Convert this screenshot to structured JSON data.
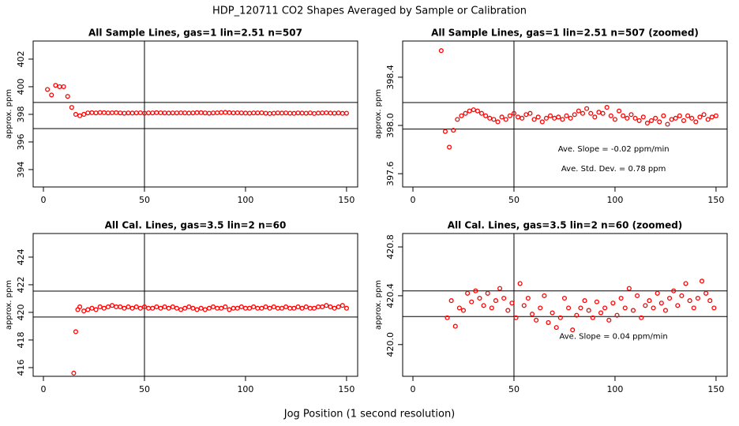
{
  "title": "HDP_120711  CO2 Shapes Averaged by Sample or Calibration",
  "xlabel": "Jog Position (1 second resolution)",
  "chart_data": [
    {
      "type": "scatter",
      "title": "All Sample Lines, gas=1 lin=2.51 n=507",
      "ylabel": "approx. ppm",
      "color": "#ff0000",
      "xlim": [
        -5.08,
        155.5
      ],
      "ylim": [
        392.74,
        403.31
      ],
      "xticks": [
        0,
        50,
        100,
        150
      ],
      "yticks": [
        394,
        396,
        398,
        400,
        402
      ],
      "hlines": [
        396.97,
        398.86
      ],
      "vlines": [
        50
      ],
      "annotations": [],
      "x": [
        2,
        4,
        6,
        8,
        10,
        12,
        14,
        16,
        18,
        20,
        22,
        24,
        26,
        28,
        30,
        32,
        34,
        36,
        38,
        40,
        42,
        44,
        46,
        48,
        50,
        52,
        54,
        56,
        58,
        60,
        62,
        64,
        66,
        68,
        70,
        72,
        74,
        76,
        78,
        80,
        82,
        84,
        86,
        88,
        90,
        92,
        94,
        96,
        98,
        100,
        102,
        104,
        106,
        108,
        110,
        112,
        114,
        116,
        118,
        120,
        122,
        124,
        126,
        128,
        130,
        132,
        134,
        136,
        138,
        140,
        142,
        144,
        146,
        148,
        150
      ],
      "values": [
        399.8,
        399.4,
        400.1,
        400.0,
        400.0,
        399.3,
        398.5,
        398.0,
        397.9,
        398.0,
        398.1,
        398.12,
        398.1,
        398.13,
        398.12,
        398.1,
        398.11,
        398.12,
        398.1,
        398.08,
        398.1,
        398.09,
        398.1,
        398.11,
        398.08,
        398.1,
        398.1,
        398.12,
        398.11,
        398.1,
        398.09,
        398.1,
        398.1,
        398.11,
        398.1,
        398.09,
        398.1,
        398.12,
        398.12,
        398.1,
        398.08,
        398.1,
        398.11,
        398.13,
        398.14,
        398.12,
        398.1,
        398.11,
        398.1,
        398.09,
        398.08,
        398.1,
        398.1,
        398.11,
        398.08,
        398.06,
        398.08,
        398.1,
        398.09,
        398.1,
        398.08,
        398.07,
        398.1,
        398.09,
        398.08,
        398.1,
        398.06,
        398.09,
        398.1,
        398.11,
        398.09,
        398.08,
        398.1,
        398.07,
        398.08
      ]
    },
    {
      "type": "scatter",
      "title": "All Sample Lines, gas=1 lin=2.51 n=507 (zoomed)",
      "ylabel": "approx. ppm",
      "color": "#ff0000",
      "xlim": [
        -5.08,
        155.5
      ],
      "ylim": [
        397.49,
        398.7
      ],
      "xticks": [
        0,
        50,
        100,
        150
      ],
      "yticks": [
        397.6,
        {
          "value": 398,
          "label": "398.0"
        },
        398.4
      ],
      "hlines": [
        397.97,
        398.19
      ],
      "vlines": [
        50
      ],
      "annotations": [
        "Ave. Slope =  -0.02  ppm/min",
        "Ave. Std. Dev. =  0.78  ppm"
      ],
      "x": [
        14,
        16,
        18,
        20,
        22,
        24,
        26,
        28,
        30,
        32,
        34,
        36,
        38,
        40,
        42,
        44,
        46,
        48,
        50,
        52,
        54,
        56,
        58,
        60,
        62,
        64,
        66,
        68,
        70,
        72,
        74,
        76,
        78,
        80,
        82,
        84,
        86,
        88,
        90,
        92,
        94,
        96,
        98,
        100,
        102,
        104,
        106,
        108,
        110,
        112,
        114,
        116,
        118,
        120,
        122,
        124,
        126,
        128,
        130,
        132,
        134,
        136,
        138,
        140,
        142,
        144,
        146,
        148,
        150
      ],
      "values": [
        398.62,
        397.95,
        397.82,
        397.96,
        398.05,
        398.08,
        398.1,
        398.12,
        398.13,
        398.12,
        398.1,
        398.08,
        398.06,
        398.05,
        398.03,
        398.07,
        398.05,
        398.08,
        398.1,
        398.07,
        398.06,
        398.09,
        398.1,
        398.05,
        398.07,
        398.03,
        398.06,
        398.08,
        398.06,
        398.07,
        398.05,
        398.08,
        398.06,
        398.09,
        398.12,
        398.1,
        398.14,
        398.1,
        398.07,
        398.11,
        398.1,
        398.15,
        398.08,
        398.05,
        398.12,
        398.08,
        398.06,
        398.09,
        398.06,
        398.04,
        398.07,
        398.02,
        398.04,
        398.06,
        398.03,
        398.08,
        398.01,
        398.05,
        398.06,
        398.08,
        398.04,
        398.08,
        398.06,
        398.03,
        398.07,
        398.09,
        398.05,
        398.07,
        398.08
      ]
    },
    {
      "type": "scatter",
      "title": "All Cal. Lines, gas=3.5 lin=2 n=60",
      "ylabel": "approx. ppm",
      "color": "#ff0000",
      "xlim": [
        -5.08,
        155.5
      ],
      "ylim": [
        415.37,
        425.71
      ],
      "xticks": [
        0,
        50,
        100,
        150
      ],
      "yticks": [
        416,
        418,
        420,
        422,
        424
      ],
      "hlines": [
        419.66,
        421.54
      ],
      "vlines": [
        50
      ],
      "annotations": [],
      "x": [
        15,
        16,
        17,
        18,
        20,
        22,
        24,
        26,
        28,
        30,
        32,
        34,
        36,
        38,
        40,
        42,
        44,
        46,
        48,
        50,
        52,
        54,
        56,
        58,
        60,
        62,
        64,
        66,
        68,
        70,
        72,
        74,
        76,
        78,
        80,
        82,
        84,
        86,
        88,
        90,
        92,
        94,
        96,
        98,
        100,
        102,
        104,
        106,
        108,
        110,
        112,
        114,
        116,
        118,
        120,
        122,
        124,
        126,
        128,
        130,
        132,
        134,
        136,
        138,
        140,
        142,
        144,
        146,
        148,
        150
      ],
      "values": [
        415.6,
        418.6,
        420.2,
        420.4,
        420.1,
        420.2,
        420.3,
        420.2,
        420.4,
        420.3,
        420.4,
        420.5,
        420.4,
        420.4,
        420.3,
        420.4,
        420.3,
        420.4,
        420.3,
        420.4,
        420.3,
        420.3,
        420.4,
        420.3,
        420.4,
        420.3,
        420.4,
        420.3,
        420.2,
        420.3,
        420.4,
        420.3,
        420.2,
        420.3,
        420.2,
        420.3,
        420.4,
        420.3,
        420.3,
        420.4,
        420.2,
        420.3,
        420.3,
        420.4,
        420.3,
        420.3,
        420.4,
        420.3,
        420.3,
        420.4,
        420.3,
        420.4,
        420.3,
        420.3,
        420.4,
        420.3,
        420.3,
        420.4,
        420.3,
        420.4,
        420.3,
        420.3,
        420.4,
        420.4,
        420.5,
        420.4,
        420.3,
        420.4,
        420.5,
        420.3
      ]
    },
    {
      "type": "scatter",
      "title": "All Cal. Lines, gas=3.5 lin=2 n=60 (zoomed)",
      "ylabel": "approx. ppm",
      "color": "#ff0000",
      "xlim": [
        -5.08,
        155.5
      ],
      "ylim": [
        419.74,
        420.91
      ],
      "xticks": [
        0,
        50,
        100,
        150
      ],
      "yticks": [
        {
          "value": 420,
          "label": "420.0"
        },
        420.4,
        420.8
      ],
      "hlines": [
        420.23,
        420.44
      ],
      "vlines": [
        50
      ],
      "annotations": [
        "Ave. Slope =  0.04  ppm/min"
      ],
      "x": [
        17,
        19,
        21,
        23,
        25,
        27,
        29,
        31,
        33,
        35,
        37,
        39,
        41,
        43,
        45,
        47,
        49,
        51,
        53,
        55,
        57,
        59,
        61,
        63,
        65,
        67,
        69,
        71,
        73,
        75,
        77,
        79,
        81,
        83,
        85,
        87,
        89,
        91,
        93,
        95,
        97,
        99,
        101,
        103,
        105,
        107,
        109,
        111,
        113,
        115,
        117,
        119,
        121,
        123,
        125,
        127,
        129,
        131,
        133,
        135,
        137,
        139,
        141,
        143,
        145,
        147,
        149
      ],
      "values": [
        420.22,
        420.36,
        420.15,
        420.3,
        420.28,
        420.42,
        420.35,
        420.44,
        420.38,
        420.32,
        420.42,
        420.3,
        420.36,
        420.46,
        420.38,
        420.28,
        420.34,
        420.22,
        420.5,
        420.32,
        420.38,
        420.25,
        420.2,
        420.3,
        420.4,
        420.18,
        420.26,
        420.14,
        420.22,
        420.38,
        420.3,
        420.12,
        420.24,
        420.3,
        420.36,
        420.28,
        420.22,
        420.35,
        420.26,
        420.3,
        420.2,
        420.34,
        420.24,
        420.38,
        420.3,
        420.46,
        420.28,
        420.4,
        420.22,
        420.32,
        420.36,
        420.3,
        420.42,
        420.34,
        420.28,
        420.38,
        420.44,
        420.32,
        420.4,
        420.5,
        420.36,
        420.3,
        420.38,
        420.52,
        420.42,
        420.36,
        420.3
      ]
    }
  ]
}
